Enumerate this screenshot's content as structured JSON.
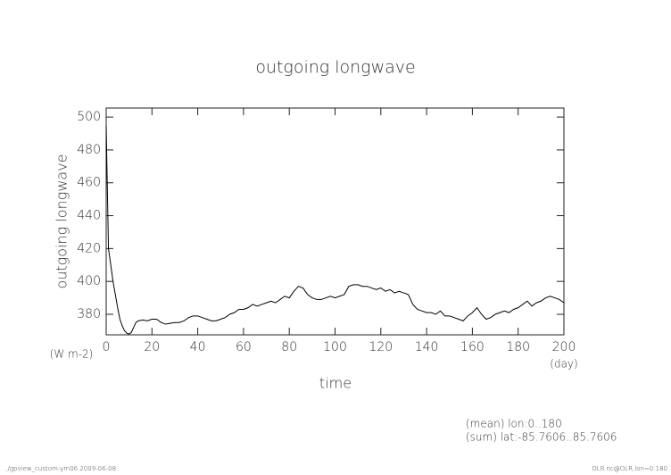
{
  "chart_data": {
    "type": "line",
    "title": "outgoing longwave",
    "y_label": "outgoing longwave",
    "y_unit": "(W m-2)",
    "x_label": "time",
    "x_unit": "(day)",
    "annotations": [
      "(mean) lon:0..180",
      "(sum) lat:-85.7606..85.7606"
    ],
    "footer_left": "../gpview_custom-ym06  2009-06-08",
    "footer_right": "OLR.nc@OLR,lon=0:180",
    "x": [
      0,
      1,
      2,
      3,
      4,
      5,
      6,
      7,
      8,
      9,
      10,
      11,
      12,
      13,
      14,
      16,
      18,
      20,
      22,
      24,
      26,
      28,
      30,
      32,
      34,
      36,
      38,
      40,
      42,
      44,
      46,
      48,
      50,
      52,
      54,
      56,
      58,
      60,
      62,
      64,
      66,
      68,
      70,
      72,
      74,
      76,
      78,
      80,
      82,
      84,
      86,
      88,
      90,
      92,
      94,
      96,
      98,
      100,
      102,
      104,
      106,
      108,
      110,
      112,
      114,
      116,
      118,
      120,
      122,
      124,
      126,
      128,
      130,
      132,
      134,
      136,
      138,
      140,
      142,
      144,
      146,
      148,
      150,
      152,
      154,
      156,
      158,
      160,
      162,
      164,
      166,
      168,
      170,
      172,
      174,
      176,
      178,
      180,
      182,
      184,
      186,
      188,
      190,
      192,
      194,
      196,
      198,
      200
    ],
    "series": [
      {
        "name": "outgoing longwave",
        "color": "#000000",
        "values": [
          495,
          420,
          410,
          400,
          392,
          384,
          377,
          373,
          370,
          368.5,
          368,
          369,
          372,
          375,
          376,
          376.5,
          376,
          377,
          377,
          375,
          374,
          374.5,
          375,
          375,
          376,
          378,
          379,
          379,
          378,
          377,
          376,
          376,
          377,
          378,
          380,
          381,
          383,
          383,
          384,
          386,
          385,
          386,
          387,
          388,
          387,
          389,
          391,
          390,
          394,
          397,
          396,
          392,
          390,
          389,
          389,
          390,
          391,
          390,
          391,
          392,
          397,
          398,
          398,
          397,
          397,
          396,
          395,
          396,
          394,
          395,
          393,
          394,
          393,
          392,
          386,
          383,
          382,
          381,
          381,
          380,
          382,
          379,
          379,
          378,
          377,
          376,
          379,
          381,
          384,
          380,
          377,
          378,
          380,
          381,
          382,
          381,
          383,
          384,
          386,
          388,
          385,
          387,
          388,
          390,
          391,
          390,
          389,
          387
        ]
      }
    ],
    "xlim": [
      0,
      200
    ],
    "xticks": [
      0,
      20,
      40,
      60,
      80,
      100,
      120,
      140,
      160,
      180,
      200
    ],
    "ylim": [
      367.5,
      505.5
    ],
    "yticks": [
      380,
      400,
      420,
      440,
      460,
      480,
      500
    ],
    "grid": false
  }
}
